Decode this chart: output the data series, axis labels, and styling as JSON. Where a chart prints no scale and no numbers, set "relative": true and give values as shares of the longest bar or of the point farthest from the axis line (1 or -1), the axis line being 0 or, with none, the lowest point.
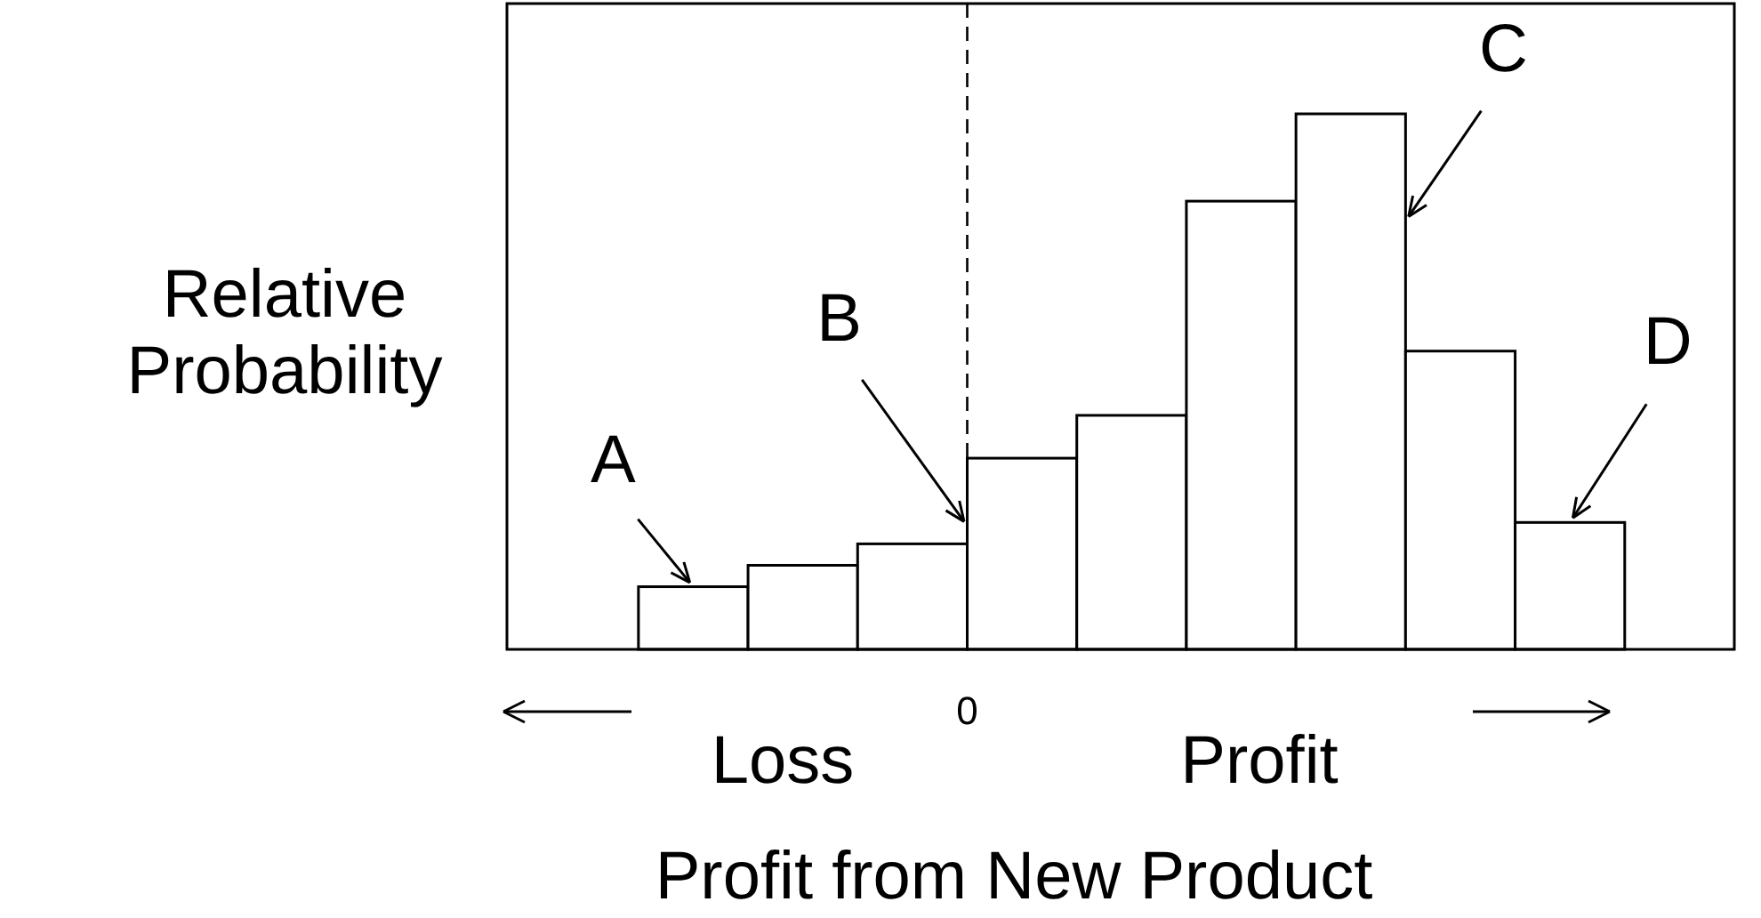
{
  "chart_data": {
    "type": "bar",
    "relative": true,
    "categories": [
      null,
      null,
      null,
      null,
      null,
      null,
      null,
      null,
      null
    ],
    "values": [
      0.117,
      0.157,
      0.197,
      0.357,
      0.437,
      0.837,
      1,
      0.557,
      0.237
    ],
    "color": "#ffffff",
    "xlabel": "Profit from New Product",
    "ylabel": "Relative Probability",
    "ref_lines": [
      {
        "axis": "x",
        "label": "0",
        "line_style": "dashed",
        "color": "#000000"
      }
    ],
    "annotations": [
      "A",
      "B",
      "C",
      "D",
      "Loss",
      "Profit"
    ]
  }
}
